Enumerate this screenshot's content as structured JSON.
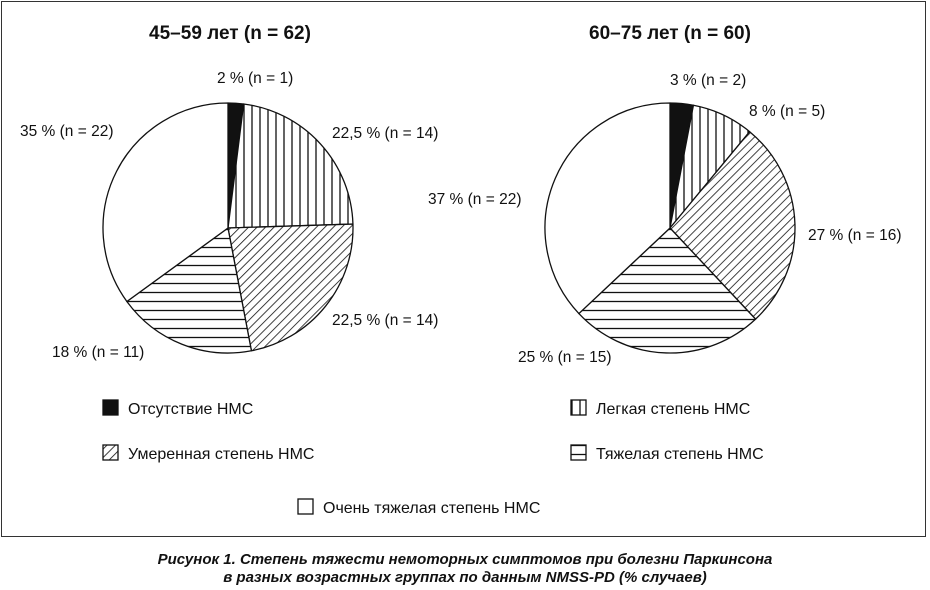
{
  "chart_data": [
    {
      "type": "pie",
      "title": "45–59 лет (n = 62)",
      "categories": [
        "Отсутствие НМС",
        "Легкая степень НМС",
        "Умеренная степень НМС",
        "Тяжелая степень НМС",
        "Очень тяжелая степень НМС"
      ],
      "values": [
        2,
        22.5,
        22.5,
        18,
        35
      ],
      "labels": [
        "2 % (n = 1)",
        "22,5 % (n = 14)",
        "22,5 % (n = 14)",
        "18 % (n = 11)",
        "35 % (n = 22)"
      ]
    },
    {
      "type": "pie",
      "title": "60–75 лет (n = 60)",
      "categories": [
        "Отсутствие НМС",
        "Легкая степень НМС",
        "Умеренная степень НМС",
        "Тяжелая степень НМС",
        "Очень тяжелая степень НМС"
      ],
      "values": [
        3,
        8,
        27,
        25,
        37
      ],
      "labels": [
        "3 % (n = 2)",
        "8 % (n = 5)",
        "27 % (n = 16)",
        "25 % (n = 15)",
        "37 % (n = 22)"
      ]
    }
  ],
  "legend": [
    {
      "label": "Отсутствие НМС",
      "pattern": "solid"
    },
    {
      "label": "Легкая степень НМС",
      "pattern": "vertical"
    },
    {
      "label": "Умеренная степень НМС",
      "pattern": "diagonal"
    },
    {
      "label": "Тяжелая степень НМС",
      "pattern": "horizontal"
    },
    {
      "label": "Очень тяжелая степень НМС",
      "pattern": "empty"
    }
  ],
  "caption": {
    "line1": "Рисунок 1. Степень тяжести немоторных симптомов при болезни Паркинсона",
    "line2": "в разных возрастных группах по данным NMSS-PD (% случаев)"
  },
  "colors": {
    "ink": "#111111",
    "background": "#ffffff"
  }
}
